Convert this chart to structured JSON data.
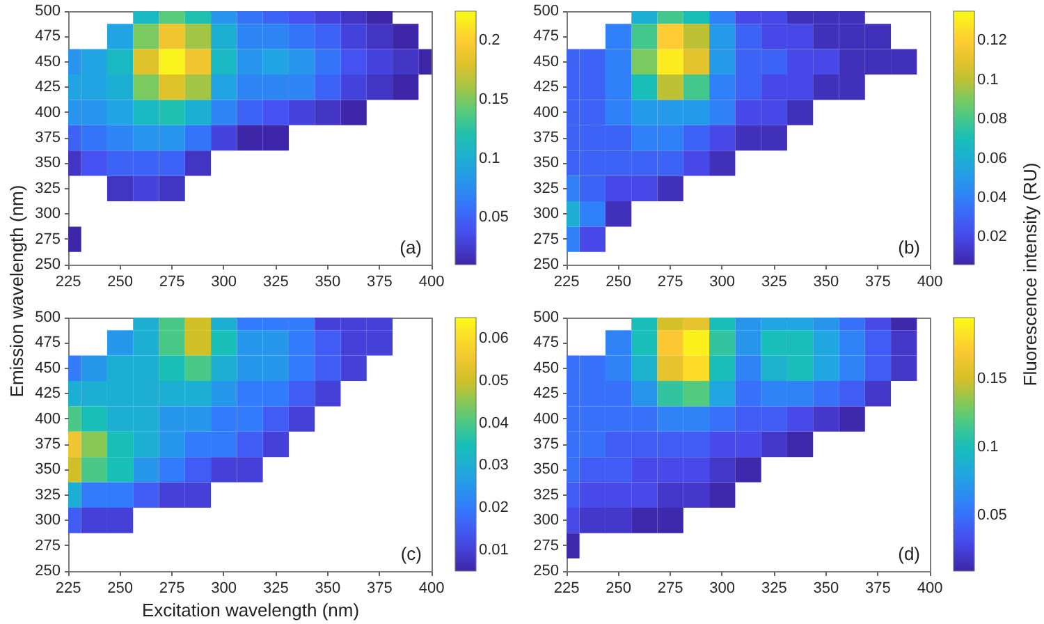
{
  "chart_data": [
    {
      "type": "heatmap",
      "ylabel": "Emission wavelength (nm)",
      "annotations": [
        "(a)"
      ],
      "categories": [
        "225",
        null,
        "250",
        null,
        "275",
        null,
        "300",
        null,
        "325",
        null,
        "350",
        null,
        "375",
        null,
        "400"
      ],
      "y_categories": [
        "500",
        "475",
        "450",
        "425",
        "400",
        "375",
        "350",
        "325",
        "300",
        "275",
        "250"
      ],
      "clim": [
        0.01,
        0.225
      ],
      "cticks": [
        0.05,
        0.1,
        0.15,
        0.2
      ],
      "cells": [
        [
          null,
          null,
          null,
          0.11,
          0.14,
          0.12,
          0.08,
          0.06,
          0.05,
          0.04,
          0.03,
          0.02,
          0.01,
          null,
          null
        ],
        [
          null,
          null,
          0.09,
          0.15,
          0.19,
          0.16,
          0.1,
          0.07,
          0.07,
          0.06,
          0.05,
          0.03,
          0.02,
          0.01,
          null
        ],
        [
          0.08,
          0.09,
          0.11,
          0.18,
          0.22,
          0.19,
          0.11,
          0.08,
          0.09,
          0.08,
          0.06,
          0.04,
          0.03,
          0.02,
          0.01
        ],
        [
          0.09,
          0.09,
          0.1,
          0.15,
          0.18,
          0.16,
          0.09,
          0.07,
          0.07,
          0.07,
          0.05,
          0.03,
          0.02,
          0.01,
          null
        ],
        [
          0.08,
          0.08,
          0.09,
          0.11,
          0.12,
          0.1,
          0.07,
          0.05,
          0.04,
          0.03,
          0.02,
          0.01,
          null,
          null,
          null
        ],
        [
          0.05,
          0.06,
          0.07,
          0.08,
          0.08,
          0.06,
          0.03,
          0.01,
          0.01,
          null,
          null,
          null,
          null,
          null,
          null
        ],
        [
          0.02,
          0.04,
          0.05,
          0.05,
          0.05,
          0.02,
          null,
          null,
          null,
          null,
          null,
          null,
          null,
          null,
          null
        ],
        [
          null,
          null,
          0.02,
          0.03,
          0.02,
          null,
          null,
          null,
          null,
          null,
          null,
          null,
          null,
          null,
          null
        ],
        [
          null,
          null,
          null,
          null,
          null,
          null,
          null,
          null,
          null,
          null,
          null,
          null,
          null,
          null,
          null
        ],
        [
          0.01,
          null,
          null,
          null,
          null,
          null,
          null,
          null,
          null,
          null,
          null,
          null,
          null,
          null,
          null
        ],
        [
          null,
          null,
          null,
          null,
          null,
          null,
          null,
          null,
          null,
          null,
          null,
          null,
          null,
          null,
          null
        ]
      ]
    },
    {
      "type": "heatmap",
      "clabel": "Fluorescence intensity (RU)",
      "annotations": [
        "(b)"
      ],
      "categories": [
        "225",
        null,
        "250",
        null,
        "275",
        null,
        "300",
        null,
        "325",
        null,
        "350",
        null,
        "375",
        null,
        "400"
      ],
      "y_categories": [
        "500",
        "475",
        "450",
        "425",
        "400",
        "375",
        "350",
        "325",
        "300",
        "275",
        "250"
      ],
      "clim": [
        0.006,
        0.135
      ],
      "cticks": [
        0.02,
        0.04,
        0.06,
        0.08,
        0.1,
        0.12
      ],
      "cells": [
        [
          null,
          null,
          null,
          0.06,
          0.08,
          0.07,
          0.04,
          0.02,
          0.02,
          0.01,
          0.01,
          0.01,
          null,
          null,
          null
        ],
        [
          null,
          null,
          0.04,
          0.08,
          0.12,
          0.1,
          0.05,
          0.03,
          0.02,
          0.02,
          0.01,
          0.01,
          0.01,
          null,
          null
        ],
        [
          0.03,
          0.03,
          0.04,
          0.09,
          0.13,
          0.11,
          0.05,
          0.03,
          0.03,
          0.02,
          0.02,
          0.01,
          0.01,
          0.01,
          null
        ],
        [
          0.03,
          0.03,
          0.04,
          0.07,
          0.1,
          0.08,
          0.04,
          0.03,
          0.02,
          0.02,
          0.01,
          0.01,
          null,
          null,
          null
        ],
        [
          0.03,
          0.03,
          0.04,
          0.05,
          0.05,
          0.05,
          0.04,
          0.02,
          0.02,
          0.01,
          null,
          null,
          null,
          null,
          null
        ],
        [
          0.03,
          0.03,
          0.03,
          0.04,
          0.04,
          0.03,
          0.02,
          0.01,
          0.01,
          null,
          null,
          null,
          null,
          null,
          null
        ],
        [
          0.03,
          0.03,
          0.03,
          0.03,
          0.03,
          0.02,
          0.01,
          null,
          null,
          null,
          null,
          null,
          null,
          null,
          null
        ],
        [
          0.04,
          0.03,
          0.02,
          0.02,
          0.01,
          null,
          null,
          null,
          null,
          null,
          null,
          null,
          null,
          null,
          null
        ],
        [
          0.06,
          0.04,
          0.01,
          null,
          null,
          null,
          null,
          null,
          null,
          null,
          null,
          null,
          null,
          null,
          null
        ],
        [
          0.04,
          0.02,
          null,
          null,
          null,
          null,
          null,
          null,
          null,
          null,
          null,
          null,
          null,
          null,
          null
        ],
        [
          null,
          null,
          null,
          null,
          null,
          null,
          null,
          null,
          null,
          null,
          null,
          null,
          null,
          null,
          null
        ]
      ]
    },
    {
      "type": "heatmap",
      "xlabel": "Excitation wavelength (nm)",
      "annotations": [
        "(c)"
      ],
      "categories": [
        "225",
        null,
        "250",
        null,
        "275",
        null,
        "300",
        null,
        "325",
        null,
        "350",
        null,
        "375",
        null,
        "400"
      ],
      "y_categories": [
        "500",
        "475",
        "450",
        "425",
        "400",
        "375",
        "350",
        "325",
        "300",
        "275",
        "250"
      ],
      "clim": [
        0.005,
        0.065
      ],
      "cticks": [
        0.01,
        0.02,
        0.03,
        0.04,
        0.05,
        0.06
      ],
      "cells": [
        [
          null,
          null,
          null,
          0.03,
          0.04,
          0.05,
          0.03,
          0.02,
          0.02,
          0.02,
          0.01,
          0.01,
          0.01,
          null,
          null
        ],
        [
          null,
          null,
          0.025,
          0.03,
          0.04,
          0.05,
          0.035,
          0.025,
          0.025,
          0.02,
          0.015,
          0.01,
          0.01,
          null,
          null
        ],
        [
          0.02,
          0.025,
          0.03,
          0.03,
          0.035,
          0.04,
          0.03,
          0.025,
          0.025,
          0.02,
          0.015,
          0.01,
          null,
          null,
          null
        ],
        [
          0.03,
          0.03,
          0.03,
          0.03,
          0.03,
          0.03,
          0.025,
          0.02,
          0.02,
          0.015,
          0.01,
          null,
          null,
          null,
          null
        ],
        [
          0.04,
          0.035,
          0.03,
          0.03,
          0.025,
          0.025,
          0.02,
          0.02,
          0.015,
          0.01,
          null,
          null,
          null,
          null,
          null
        ],
        [
          0.055,
          0.045,
          0.035,
          0.03,
          0.025,
          0.02,
          0.02,
          0.015,
          0.01,
          null,
          null,
          null,
          null,
          null,
          null
        ],
        [
          0.05,
          0.04,
          0.035,
          0.025,
          0.02,
          0.015,
          0.01,
          0.01,
          null,
          null,
          null,
          null,
          null,
          null,
          null
        ],
        [
          0.03,
          0.02,
          0.02,
          0.015,
          0.01,
          0.01,
          null,
          null,
          null,
          null,
          null,
          null,
          null,
          null,
          null
        ],
        [
          0.015,
          0.01,
          0.01,
          null,
          null,
          null,
          null,
          null,
          null,
          null,
          null,
          null,
          null,
          null,
          null
        ],
        [
          null,
          null,
          null,
          null,
          null,
          null,
          null,
          null,
          null,
          null,
          null,
          null,
          null,
          null,
          null
        ],
        [
          null,
          null,
          null,
          null,
          null,
          null,
          null,
          null,
          null,
          null,
          null,
          null,
          null,
          null,
          null
        ]
      ]
    },
    {
      "type": "heatmap",
      "annotations": [
        "(d)"
      ],
      "categories": [
        "225",
        null,
        "250",
        null,
        "275",
        null,
        "300",
        null,
        "325",
        null,
        "350",
        null,
        "375",
        null,
        "400"
      ],
      "y_categories": [
        "500",
        "475",
        "450",
        "425",
        "400",
        "375",
        "350",
        "325",
        "300",
        "275",
        "250"
      ],
      "clim": [
        0.009,
        0.195
      ],
      "cticks": [
        0.05,
        0.1,
        0.15
      ],
      "cells": [
        [
          null,
          null,
          null,
          0.1,
          0.15,
          0.16,
          0.1,
          0.07,
          0.08,
          0.08,
          0.07,
          0.05,
          0.03,
          0.01,
          null
        ],
        [
          null,
          null,
          0.06,
          0.1,
          0.17,
          0.19,
          0.11,
          0.07,
          0.1,
          0.1,
          0.08,
          0.06,
          0.04,
          0.02,
          null
        ],
        [
          0.05,
          0.05,
          0.06,
          0.09,
          0.16,
          0.18,
          0.1,
          0.06,
          0.09,
          0.1,
          0.08,
          0.06,
          0.04,
          0.02,
          null
        ],
        [
          0.05,
          0.05,
          0.05,
          0.07,
          0.11,
          0.12,
          0.08,
          0.05,
          0.06,
          0.06,
          0.05,
          0.04,
          0.02,
          null,
          null
        ],
        [
          0.05,
          0.05,
          0.05,
          0.05,
          0.06,
          0.06,
          0.05,
          0.04,
          0.04,
          0.03,
          0.02,
          0.01,
          null,
          null,
          null
        ],
        [
          0.05,
          0.05,
          0.04,
          0.04,
          0.04,
          0.04,
          0.03,
          0.03,
          0.02,
          0.01,
          null,
          null,
          null,
          null,
          null
        ],
        [
          0.05,
          0.04,
          0.04,
          0.03,
          0.03,
          0.03,
          0.02,
          0.01,
          null,
          null,
          null,
          null,
          null,
          null,
          null
        ],
        [
          0.04,
          0.03,
          0.03,
          0.03,
          0.02,
          0.02,
          0.01,
          null,
          null,
          null,
          null,
          null,
          null,
          null,
          null
        ],
        [
          0.03,
          0.02,
          0.02,
          0.01,
          0.01,
          null,
          null,
          null,
          null,
          null,
          null,
          null,
          null,
          null,
          null
        ],
        [
          0.01,
          null,
          null,
          null,
          null,
          null,
          null,
          null,
          null,
          null,
          null,
          null,
          null,
          null,
          null
        ],
        [
          null,
          null,
          null,
          null,
          null,
          null,
          null,
          null,
          null,
          null,
          null,
          null,
          null,
          null,
          null
        ]
      ]
    }
  ]
}
